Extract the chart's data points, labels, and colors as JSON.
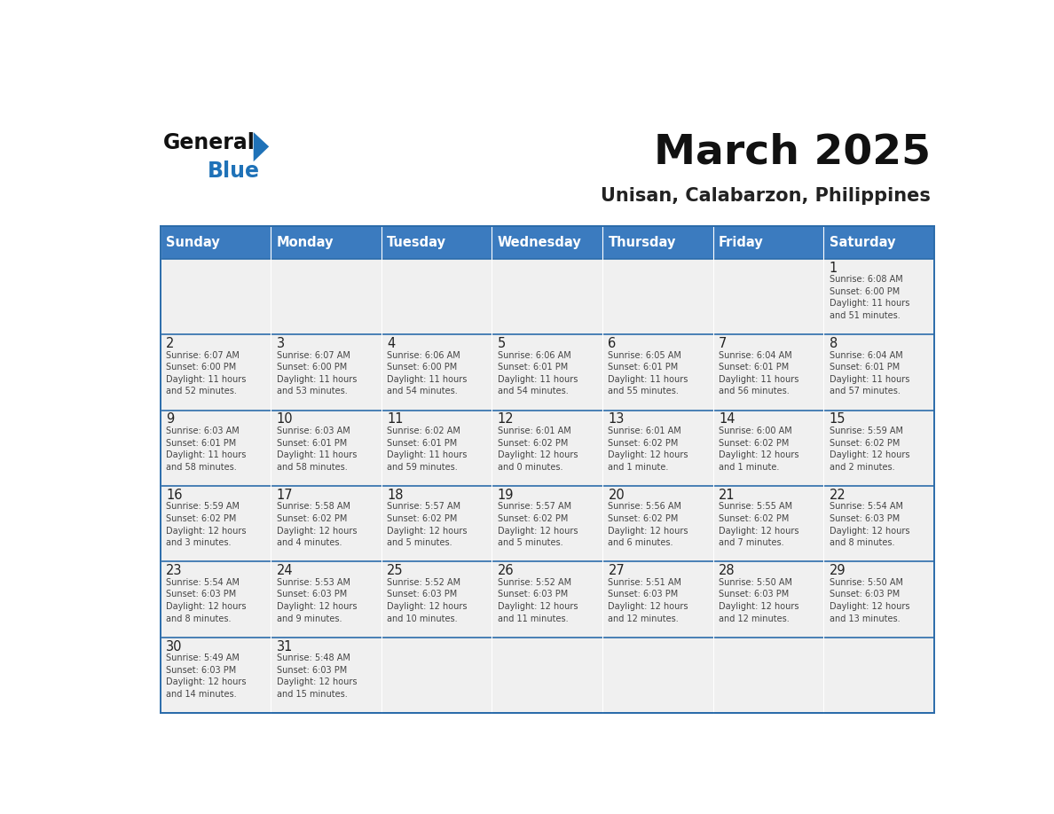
{
  "title": "March 2025",
  "subtitle": "Unisan, Calabarzon, Philippines",
  "days_of_week": [
    "Sunday",
    "Monday",
    "Tuesday",
    "Wednesday",
    "Thursday",
    "Friday",
    "Saturday"
  ],
  "header_bg": "#3B7BBF",
  "header_text": "#FFFFFF",
  "cell_bg_light": "#F0F0F0",
  "day_number_color": "#222222",
  "text_color": "#444444",
  "line_color": "#2B6BAA",
  "title_color": "#111111",
  "subtitle_color": "#222222",
  "logo_text_color": "#111111",
  "logo_blue_color": "#1F72B8",
  "calendar_data": [
    [
      null,
      null,
      null,
      null,
      null,
      null,
      {
        "day": "1",
        "sunrise": "6:08 AM",
        "sunset": "6:00 PM",
        "daylight": "11 hours\nand 51 minutes."
      }
    ],
    [
      {
        "day": "2",
        "sunrise": "6:07 AM",
        "sunset": "6:00 PM",
        "daylight": "11 hours\nand 52 minutes."
      },
      {
        "day": "3",
        "sunrise": "6:07 AM",
        "sunset": "6:00 PM",
        "daylight": "11 hours\nand 53 minutes."
      },
      {
        "day": "4",
        "sunrise": "6:06 AM",
        "sunset": "6:00 PM",
        "daylight": "11 hours\nand 54 minutes."
      },
      {
        "day": "5",
        "sunrise": "6:06 AM",
        "sunset": "6:01 PM",
        "daylight": "11 hours\nand 54 minutes."
      },
      {
        "day": "6",
        "sunrise": "6:05 AM",
        "sunset": "6:01 PM",
        "daylight": "11 hours\nand 55 minutes."
      },
      {
        "day": "7",
        "sunrise": "6:04 AM",
        "sunset": "6:01 PM",
        "daylight": "11 hours\nand 56 minutes."
      },
      {
        "day": "8",
        "sunrise": "6:04 AM",
        "sunset": "6:01 PM",
        "daylight": "11 hours\nand 57 minutes."
      }
    ],
    [
      {
        "day": "9",
        "sunrise": "6:03 AM",
        "sunset": "6:01 PM",
        "daylight": "11 hours\nand 58 minutes."
      },
      {
        "day": "10",
        "sunrise": "6:03 AM",
        "sunset": "6:01 PM",
        "daylight": "11 hours\nand 58 minutes."
      },
      {
        "day": "11",
        "sunrise": "6:02 AM",
        "sunset": "6:01 PM",
        "daylight": "11 hours\nand 59 minutes."
      },
      {
        "day": "12",
        "sunrise": "6:01 AM",
        "sunset": "6:02 PM",
        "daylight": "12 hours\nand 0 minutes."
      },
      {
        "day": "13",
        "sunrise": "6:01 AM",
        "sunset": "6:02 PM",
        "daylight": "12 hours\nand 1 minute."
      },
      {
        "day": "14",
        "sunrise": "6:00 AM",
        "sunset": "6:02 PM",
        "daylight": "12 hours\nand 1 minute."
      },
      {
        "day": "15",
        "sunrise": "5:59 AM",
        "sunset": "6:02 PM",
        "daylight": "12 hours\nand 2 minutes."
      }
    ],
    [
      {
        "day": "16",
        "sunrise": "5:59 AM",
        "sunset": "6:02 PM",
        "daylight": "12 hours\nand 3 minutes."
      },
      {
        "day": "17",
        "sunrise": "5:58 AM",
        "sunset": "6:02 PM",
        "daylight": "12 hours\nand 4 minutes."
      },
      {
        "day": "18",
        "sunrise": "5:57 AM",
        "sunset": "6:02 PM",
        "daylight": "12 hours\nand 5 minutes."
      },
      {
        "day": "19",
        "sunrise": "5:57 AM",
        "sunset": "6:02 PM",
        "daylight": "12 hours\nand 5 minutes."
      },
      {
        "day": "20",
        "sunrise": "5:56 AM",
        "sunset": "6:02 PM",
        "daylight": "12 hours\nand 6 minutes."
      },
      {
        "day": "21",
        "sunrise": "5:55 AM",
        "sunset": "6:02 PM",
        "daylight": "12 hours\nand 7 minutes."
      },
      {
        "day": "22",
        "sunrise": "5:54 AM",
        "sunset": "6:03 PM",
        "daylight": "12 hours\nand 8 minutes."
      }
    ],
    [
      {
        "day": "23",
        "sunrise": "5:54 AM",
        "sunset": "6:03 PM",
        "daylight": "12 hours\nand 8 minutes."
      },
      {
        "day": "24",
        "sunrise": "5:53 AM",
        "sunset": "6:03 PM",
        "daylight": "12 hours\nand 9 minutes."
      },
      {
        "day": "25",
        "sunrise": "5:52 AM",
        "sunset": "6:03 PM",
        "daylight": "12 hours\nand 10 minutes."
      },
      {
        "day": "26",
        "sunrise": "5:52 AM",
        "sunset": "6:03 PM",
        "daylight": "12 hours\nand 11 minutes."
      },
      {
        "day": "27",
        "sunrise": "5:51 AM",
        "sunset": "6:03 PM",
        "daylight": "12 hours\nand 12 minutes."
      },
      {
        "day": "28",
        "sunrise": "5:50 AM",
        "sunset": "6:03 PM",
        "daylight": "12 hours\nand 12 minutes."
      },
      {
        "day": "29",
        "sunrise": "5:50 AM",
        "sunset": "6:03 PM",
        "daylight": "12 hours\nand 13 minutes."
      }
    ],
    [
      {
        "day": "30",
        "sunrise": "5:49 AM",
        "sunset": "6:03 PM",
        "daylight": "12 hours\nand 14 minutes."
      },
      {
        "day": "31",
        "sunrise": "5:48 AM",
        "sunset": "6:03 PM",
        "daylight": "12 hours\nand 15 minutes."
      },
      null,
      null,
      null,
      null,
      null
    ]
  ]
}
